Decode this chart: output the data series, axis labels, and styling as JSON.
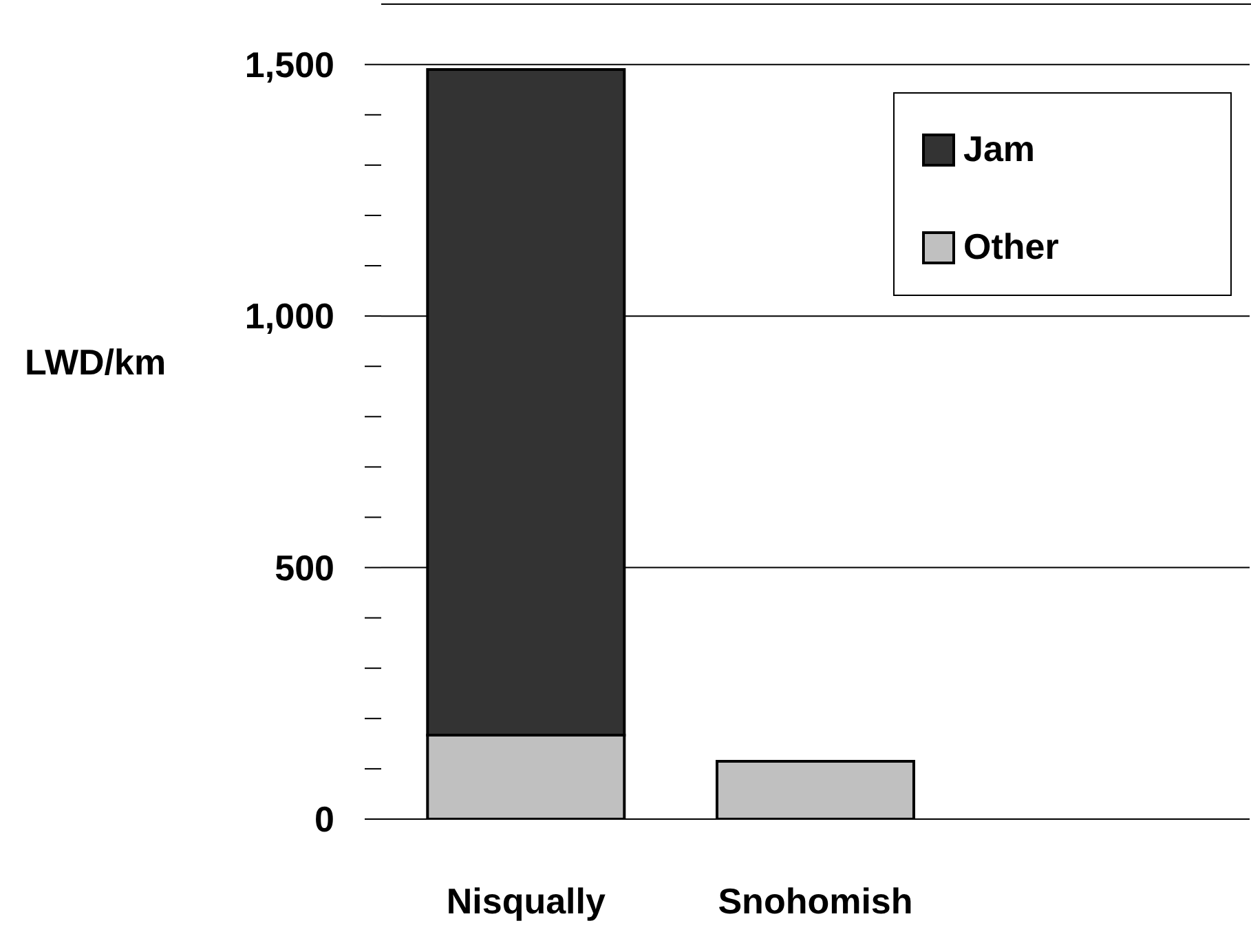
{
  "chart_data": {
    "type": "bar",
    "stacked": true,
    "ylabel": "LWD/km",
    "categories": [
      "Nisqually",
      "Snohomish",
      null
    ],
    "series": [
      {
        "name": "Other",
        "color": "#c0c0c0",
        "values": [
          167,
          115,
          null
        ]
      },
      {
        "name": "Jam",
        "color": "#333333",
        "values": [
          1323,
          null,
          null
        ]
      }
    ],
    "ylim": [
      0,
      1620
    ],
    "yticks": [
      0,
      {
        "value": 100,
        "label": null
      },
      {
        "value": 200,
        "label": null
      },
      {
        "value": 300,
        "label": null
      },
      {
        "value": 400,
        "label": null
      },
      500,
      {
        "value": 600,
        "label": null
      },
      {
        "value": 700,
        "label": null
      },
      {
        "value": 800,
        "label": null
      },
      {
        "value": 900,
        "label": null
      },
      {
        "value": 1000,
        "label": "1,000"
      },
      {
        "value": 1100,
        "label": null
      },
      {
        "value": 1200,
        "label": null
      },
      {
        "value": 1300,
        "label": null
      },
      {
        "value": 1400,
        "label": null
      },
      {
        "value": 1500,
        "label": "1,500"
      }
    ],
    "grid": "y",
    "legend": "top right"
  }
}
